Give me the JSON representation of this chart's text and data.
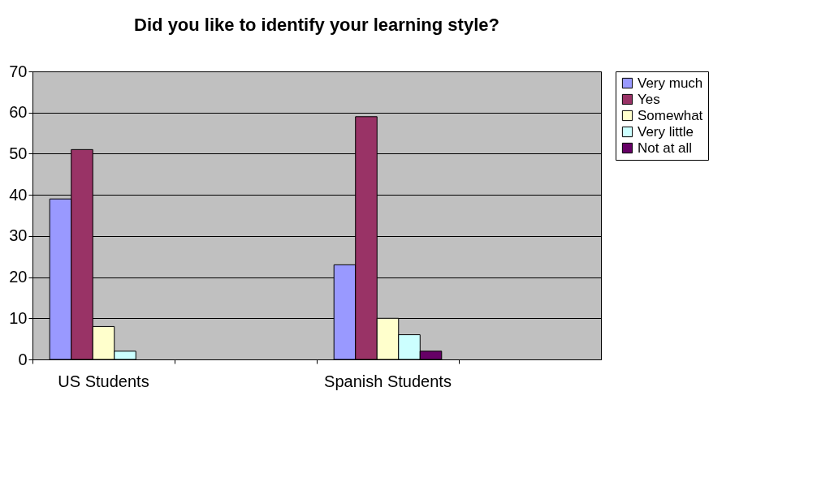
{
  "chart_data": {
    "type": "bar",
    "title": "Did you like to identify your learning style?",
    "categories": [
      "US Students",
      null,
      "Spanish Students",
      null
    ],
    "series": [
      {
        "name": "Very much",
        "color": "#9999ff",
        "values": [
          39,
          null,
          23,
          null
        ]
      },
      {
        "name": "Yes",
        "color": "#993366",
        "values": [
          51,
          null,
          59,
          null
        ]
      },
      {
        "name": "Somewhat",
        "color": "#ffffcc",
        "values": [
          8,
          null,
          10,
          null
        ]
      },
      {
        "name": "Very little",
        "color": "#ccffff",
        "values": [
          2,
          null,
          6,
          null
        ]
      },
      {
        "name": "Not at all",
        "color": "#660066",
        "values": [
          null,
          null,
          2,
          null
        ]
      }
    ],
    "ylim": [
      0,
      70
    ],
    "yticks": [
      0,
      10,
      20,
      30,
      40,
      50,
      60,
      70
    ],
    "grid": "y",
    "legend": "right"
  }
}
